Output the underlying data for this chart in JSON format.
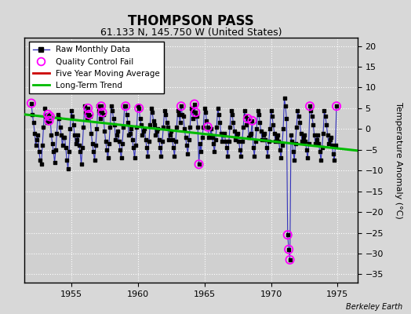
{
  "title": "THOMPSON PASS",
  "subtitle": "61.133 N, 145.750 W (United States)",
  "ylabel": "Temperature Anomaly (°C)",
  "credit": "Berkeley Earth",
  "xlim": [
    1951.5,
    1976.5
  ],
  "ylim": [
    -37,
    22
  ],
  "yticks": [
    -35,
    -30,
    -25,
    -20,
    -15,
    -10,
    -5,
    0,
    5,
    10,
    15,
    20
  ],
  "xticks": [
    1955,
    1960,
    1965,
    1970,
    1975
  ],
  "bg_color": "#d8d8d8",
  "plot_bg_color": "#d0d0d0",
  "raw_color": "#3333bb",
  "dot_color": "#000000",
  "qc_color": "#ff00ff",
  "moving_avg_color": "#cc0000",
  "trend_color": "#00bb00",
  "raw_monthly": [
    [
      1952.0,
      6.2
    ],
    [
      1952.083,
      3.5
    ],
    [
      1952.167,
      1.5
    ],
    [
      1952.25,
      -1.0
    ],
    [
      1952.333,
      -4.0
    ],
    [
      1952.417,
      -2.5
    ],
    [
      1952.5,
      -1.5
    ],
    [
      1952.583,
      -5.5
    ],
    [
      1952.667,
      -7.5
    ],
    [
      1952.75,
      -8.5
    ],
    [
      1952.833,
      -4.0
    ],
    [
      1952.917,
      0.5
    ],
    [
      1953.0,
      5.0
    ],
    [
      1953.083,
      3.0
    ],
    [
      1953.167,
      1.5
    ],
    [
      1953.25,
      3.5
    ],
    [
      1953.333,
      2.0
    ],
    [
      1953.417,
      3.0
    ],
    [
      1953.5,
      -1.5
    ],
    [
      1953.583,
      -3.5
    ],
    [
      1953.667,
      -5.5
    ],
    [
      1953.75,
      -8.0
    ],
    [
      1953.833,
      -5.0
    ],
    [
      1953.917,
      -1.0
    ],
    [
      1954.0,
      3.5
    ],
    [
      1954.083,
      2.5
    ],
    [
      1954.167,
      0.5
    ],
    [
      1954.25,
      -1.5
    ],
    [
      1954.333,
      -4.0
    ],
    [
      1954.417,
      -2.0
    ],
    [
      1954.5,
      -2.0
    ],
    [
      1954.583,
      -4.5
    ],
    [
      1954.667,
      -7.5
    ],
    [
      1954.75,
      -9.5
    ],
    [
      1954.833,
      -5.5
    ],
    [
      1954.917,
      0.0
    ],
    [
      1955.0,
      4.5
    ],
    [
      1955.083,
      3.0
    ],
    [
      1955.167,
      1.0
    ],
    [
      1955.25,
      -1.5
    ],
    [
      1955.333,
      -3.5
    ],
    [
      1955.417,
      -2.5
    ],
    [
      1955.5,
      -1.5
    ],
    [
      1955.583,
      -4.0
    ],
    [
      1955.667,
      -5.5
    ],
    [
      1955.75,
      -8.5
    ],
    [
      1955.833,
      -4.5
    ],
    [
      1955.917,
      0.5
    ],
    [
      1956.0,
      5.5
    ],
    [
      1956.083,
      4.0
    ],
    [
      1956.167,
      2.5
    ],
    [
      1956.25,
      5.0
    ],
    [
      1956.333,
      3.5
    ],
    [
      1956.417,
      3.0
    ],
    [
      1956.5,
      -1.0
    ],
    [
      1956.583,
      -3.5
    ],
    [
      1956.667,
      -5.5
    ],
    [
      1956.75,
      -7.5
    ],
    [
      1956.833,
      -4.0
    ],
    [
      1956.917,
      0.0
    ],
    [
      1957.0,
      5.5
    ],
    [
      1957.083,
      4.5
    ],
    [
      1957.167,
      2.5
    ],
    [
      1957.25,
      5.5
    ],
    [
      1957.333,
      4.0
    ],
    [
      1957.417,
      3.5
    ],
    [
      1957.5,
      -0.5
    ],
    [
      1957.583,
      -3.0
    ],
    [
      1957.667,
      -5.0
    ],
    [
      1957.75,
      -7.0
    ],
    [
      1957.833,
      -3.5
    ],
    [
      1957.917,
      0.5
    ],
    [
      1958.0,
      5.5
    ],
    [
      1958.083,
      4.5
    ],
    [
      1958.167,
      2.5
    ],
    [
      1958.25,
      1.0
    ],
    [
      1958.333,
      -2.5
    ],
    [
      1958.417,
      -1.5
    ],
    [
      1958.5,
      -0.5
    ],
    [
      1958.583,
      -3.0
    ],
    [
      1958.667,
      -5.0
    ],
    [
      1958.75,
      -7.0
    ],
    [
      1958.833,
      -3.5
    ],
    [
      1958.917,
      0.5
    ],
    [
      1959.0,
      5.5
    ],
    [
      1959.083,
      5.5
    ],
    [
      1959.167,
      3.5
    ],
    [
      1959.25,
      1.5
    ],
    [
      1959.333,
      -1.5
    ],
    [
      1959.417,
      -1.0
    ],
    [
      1959.5,
      0.0
    ],
    [
      1959.583,
      -2.5
    ],
    [
      1959.667,
      -4.5
    ],
    [
      1959.75,
      -7.0
    ],
    [
      1959.833,
      -4.0
    ],
    [
      1959.917,
      0.5
    ],
    [
      1960.0,
      5.5
    ],
    [
      1960.083,
      5.0
    ],
    [
      1960.167,
      2.5
    ],
    [
      1960.25,
      1.0
    ],
    [
      1960.333,
      -1.5
    ],
    [
      1960.417,
      -0.5
    ],
    [
      1960.5,
      0.0
    ],
    [
      1960.583,
      -2.5
    ],
    [
      1960.667,
      -4.5
    ],
    [
      1960.75,
      -6.5
    ],
    [
      1960.833,
      -3.0
    ],
    [
      1960.917,
      1.0
    ],
    [
      1961.0,
      5.0
    ],
    [
      1961.083,
      4.0
    ],
    [
      1961.167,
      2.0
    ],
    [
      1961.25,
      1.0
    ],
    [
      1961.333,
      -1.5
    ],
    [
      1961.417,
      -0.5
    ],
    [
      1961.5,
      0.0
    ],
    [
      1961.583,
      -2.5
    ],
    [
      1961.667,
      -4.5
    ],
    [
      1961.75,
      -6.5
    ],
    [
      1961.833,
      -3.0
    ],
    [
      1961.917,
      0.5
    ],
    [
      1962.0,
      4.5
    ],
    [
      1962.083,
      3.5
    ],
    [
      1962.167,
      1.5
    ],
    [
      1962.25,
      0.5
    ],
    [
      1962.333,
      -2.5
    ],
    [
      1962.417,
      -1.5
    ],
    [
      1962.5,
      -0.5
    ],
    [
      1962.583,
      -2.5
    ],
    [
      1962.667,
      -4.5
    ],
    [
      1962.75,
      -6.5
    ],
    [
      1962.833,
      -3.0
    ],
    [
      1962.917,
      0.5
    ],
    [
      1963.0,
      4.5
    ],
    [
      1963.083,
      3.5
    ],
    [
      1963.167,
      1.5
    ],
    [
      1963.25,
      5.5
    ],
    [
      1963.333,
      3.5
    ],
    [
      1963.417,
      3.0
    ],
    [
      1963.5,
      0.0
    ],
    [
      1963.583,
      -2.0
    ],
    [
      1963.667,
      -4.0
    ],
    [
      1963.75,
      -6.0
    ],
    [
      1963.833,
      -2.5
    ],
    [
      1963.917,
      0.5
    ],
    [
      1964.0,
      5.0
    ],
    [
      1964.083,
      4.5
    ],
    [
      1964.167,
      2.5
    ],
    [
      1964.25,
      6.0
    ],
    [
      1964.333,
      4.0
    ],
    [
      1964.417,
      3.0
    ],
    [
      1964.5,
      0.5
    ],
    [
      1964.583,
      -8.5
    ],
    [
      1964.667,
      -3.5
    ],
    [
      1964.75,
      -5.5
    ],
    [
      1964.833,
      -2.0
    ],
    [
      1964.917,
      0.5
    ],
    [
      1965.0,
      5.0
    ],
    [
      1965.083,
      4.0
    ],
    [
      1965.167,
      2.0
    ],
    [
      1965.25,
      0.5
    ],
    [
      1965.333,
      -2.0
    ],
    [
      1965.417,
      -1.5
    ],
    [
      1965.5,
      0.0
    ],
    [
      1965.583,
      -2.0
    ],
    [
      1965.667,
      -3.5
    ],
    [
      1965.75,
      -5.5
    ],
    [
      1965.833,
      -2.5
    ],
    [
      1965.917,
      0.5
    ],
    [
      1966.0,
      5.0
    ],
    [
      1966.083,
      3.5
    ],
    [
      1966.167,
      1.5
    ],
    [
      1966.25,
      -1.0
    ],
    [
      1966.333,
      -3.0
    ],
    [
      1966.417,
      -1.5
    ],
    [
      1966.5,
      -1.0
    ],
    [
      1966.583,
      -3.0
    ],
    [
      1966.667,
      -4.5
    ],
    [
      1966.75,
      -6.5
    ],
    [
      1966.833,
      -3.0
    ],
    [
      1966.917,
      0.5
    ],
    [
      1967.0,
      4.5
    ],
    [
      1967.083,
      3.5
    ],
    [
      1967.167,
      1.5
    ],
    [
      1967.25,
      -0.5
    ],
    [
      1967.333,
      -2.5
    ],
    [
      1967.417,
      -1.5
    ],
    [
      1967.5,
      -1.0
    ],
    [
      1967.583,
      -3.0
    ],
    [
      1967.667,
      -5.0
    ],
    [
      1967.75,
      -6.5
    ],
    [
      1967.833,
      -3.0
    ],
    [
      1967.917,
      0.5
    ],
    [
      1968.0,
      4.5
    ],
    [
      1968.083,
      3.0
    ],
    [
      1968.167,
      1.0
    ],
    [
      1968.25,
      2.5
    ],
    [
      1968.333,
      -2.0
    ],
    [
      1968.417,
      -1.5
    ],
    [
      1968.5,
      -1.0
    ],
    [
      1968.583,
      2.0
    ],
    [
      1968.667,
      -4.5
    ],
    [
      1968.75,
      -6.5
    ],
    [
      1968.833,
      -3.0
    ],
    [
      1968.917,
      0.0
    ],
    [
      1969.0,
      4.5
    ],
    [
      1969.083,
      3.5
    ],
    [
      1969.167,
      1.5
    ],
    [
      1969.25,
      -0.5
    ],
    [
      1969.333,
      -2.5
    ],
    [
      1969.417,
      -1.5
    ],
    [
      1969.5,
      -1.0
    ],
    [
      1969.583,
      -2.5
    ],
    [
      1969.667,
      -4.5
    ],
    [
      1969.75,
      -6.5
    ],
    [
      1969.833,
      -3.0
    ],
    [
      1969.917,
      0.0
    ],
    [
      1970.0,
      4.5
    ],
    [
      1970.083,
      3.0
    ],
    [
      1970.167,
      1.0
    ],
    [
      1970.25,
      -1.0
    ],
    [
      1970.333,
      -3.0
    ],
    [
      1970.417,
      -2.0
    ],
    [
      1970.5,
      -1.5
    ],
    [
      1970.583,
      -3.0
    ],
    [
      1970.667,
      -5.0
    ],
    [
      1970.75,
      -7.0
    ],
    [
      1970.833,
      -4.0
    ],
    [
      1970.917,
      0.0
    ],
    [
      1971.0,
      7.5
    ],
    [
      1971.083,
      5.5
    ],
    [
      1971.167,
      2.5
    ],
    [
      1971.25,
      -25.5
    ],
    [
      1971.333,
      -29.0
    ],
    [
      1971.417,
      -31.5
    ],
    [
      1971.5,
      -1.5
    ],
    [
      1971.583,
      -3.0
    ],
    [
      1971.667,
      -5.5
    ],
    [
      1971.75,
      -7.5
    ],
    [
      1971.833,
      -3.5
    ],
    [
      1971.917,
      0.5
    ],
    [
      1972.0,
      4.5
    ],
    [
      1972.083,
      3.0
    ],
    [
      1972.167,
      1.5
    ],
    [
      1972.25,
      -1.0
    ],
    [
      1972.333,
      -3.0
    ],
    [
      1972.417,
      -2.0
    ],
    [
      1972.5,
      -1.5
    ],
    [
      1972.583,
      -3.0
    ],
    [
      1972.667,
      -5.0
    ],
    [
      1972.75,
      -7.0
    ],
    [
      1972.833,
      -3.5
    ],
    [
      1972.917,
      5.5
    ],
    [
      1973.0,
      4.5
    ],
    [
      1973.083,
      3.0
    ],
    [
      1973.167,
      1.0
    ],
    [
      1973.25,
      -1.5
    ],
    [
      1973.333,
      -3.5
    ],
    [
      1973.417,
      -2.5
    ],
    [
      1973.5,
      -1.5
    ],
    [
      1973.583,
      -3.5
    ],
    [
      1973.667,
      -5.5
    ],
    [
      1973.75,
      -7.5
    ],
    [
      1973.833,
      -4.5
    ],
    [
      1973.917,
      -1.0
    ],
    [
      1974.0,
      4.5
    ],
    [
      1974.083,
      3.0
    ],
    [
      1974.167,
      1.0
    ],
    [
      1974.25,
      -1.5
    ],
    [
      1974.333,
      -3.5
    ],
    [
      1974.417,
      -2.5
    ],
    [
      1974.5,
      -2.0
    ],
    [
      1974.583,
      -4.0
    ],
    [
      1974.667,
      -6.0
    ],
    [
      1974.75,
      -7.5
    ],
    [
      1974.833,
      -4.0
    ],
    [
      1974.917,
      5.5
    ]
  ],
  "qc_fail_points": [
    [
      1952.0,
      6.2
    ],
    [
      1953.25,
      3.5
    ],
    [
      1953.333,
      2.0
    ],
    [
      1953.417,
      3.0
    ],
    [
      1956.25,
      5.0
    ],
    [
      1956.333,
      3.5
    ],
    [
      1957.25,
      5.5
    ],
    [
      1957.333,
      4.0
    ],
    [
      1959.083,
      5.5
    ],
    [
      1960.083,
      5.0
    ],
    [
      1963.25,
      5.5
    ],
    [
      1964.25,
      6.0
    ],
    [
      1964.333,
      4.0
    ],
    [
      1964.583,
      -8.5
    ],
    [
      1965.25,
      0.5
    ],
    [
      1968.25,
      2.5
    ],
    [
      1968.583,
      2.0
    ],
    [
      1971.25,
      -25.5
    ],
    [
      1971.333,
      -29.0
    ],
    [
      1971.417,
      -31.5
    ],
    [
      1972.917,
      5.5
    ],
    [
      1974.917,
      5.5
    ]
  ],
  "trend_x": [
    1951.5,
    1976.5
  ],
  "trend_y": [
    3.5,
    -5.2
  ]
}
